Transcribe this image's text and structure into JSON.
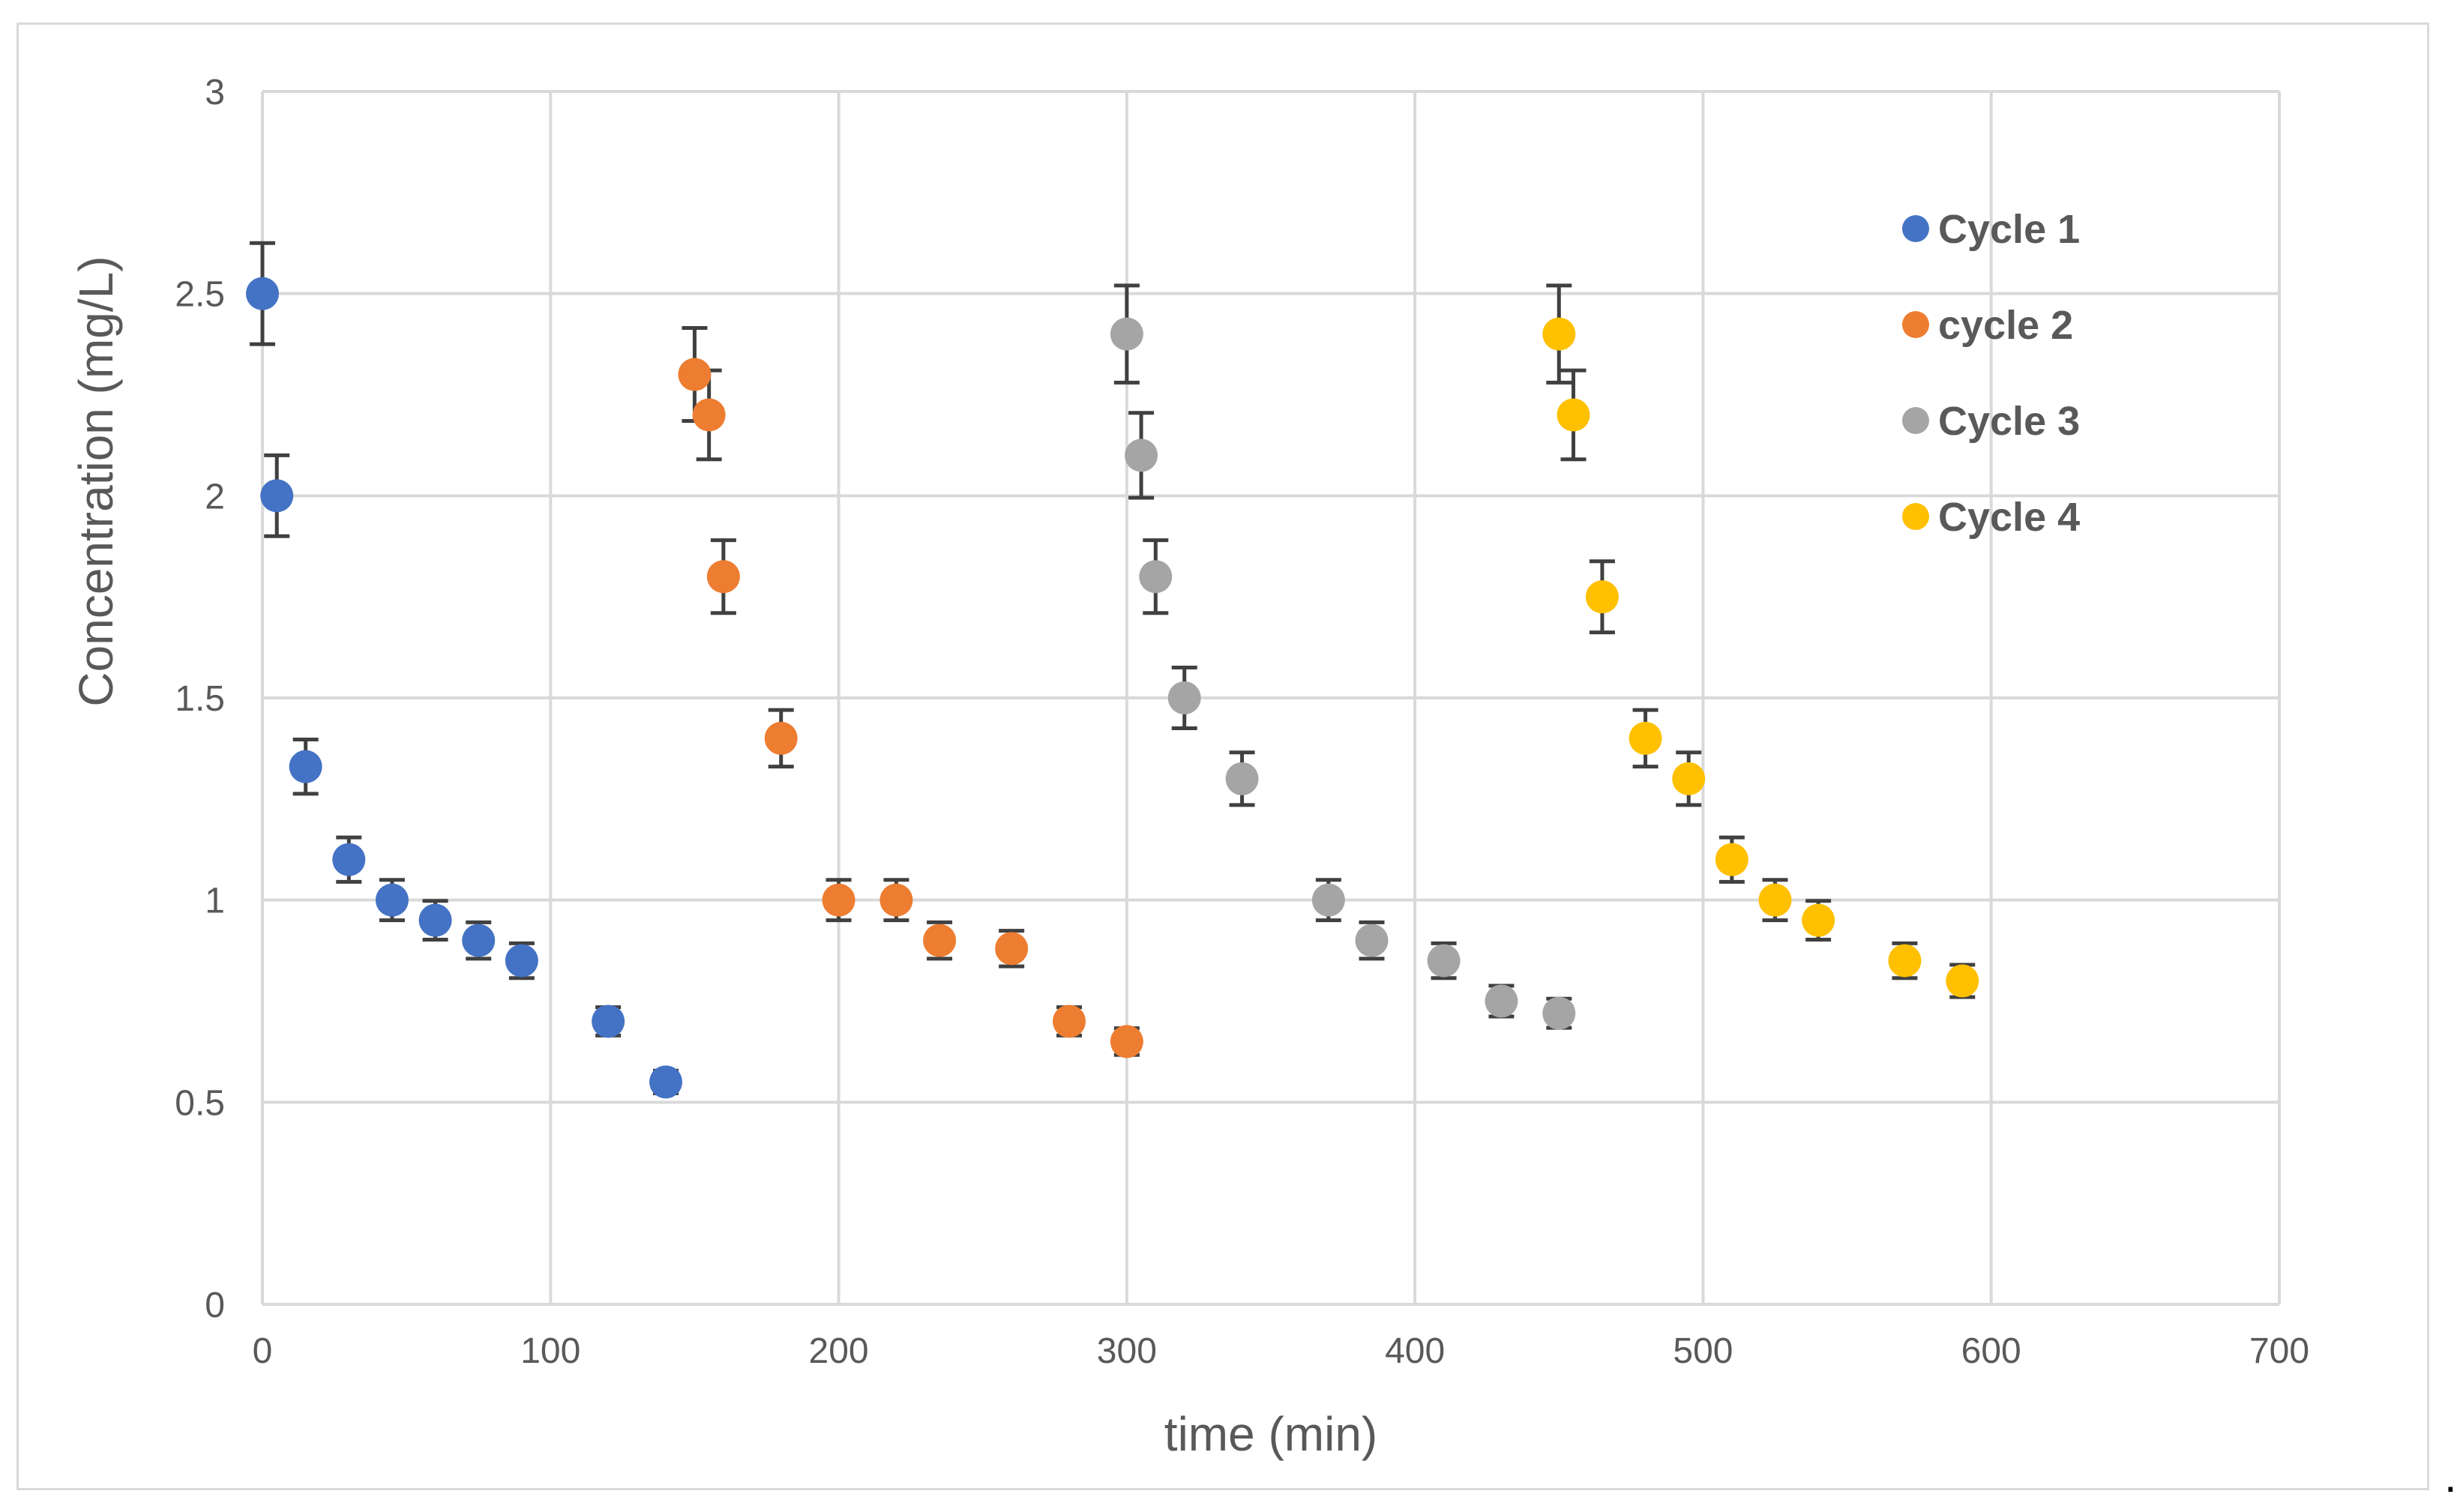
{
  "chart_data": {
    "type": "scatter",
    "title": "",
    "xlabel": "time (min)",
    "ylabel": "Concentration (mg/L)",
    "xlim": [
      0,
      700
    ],
    "ylim": [
      0,
      3
    ],
    "xticks": [
      0,
      100,
      200,
      300,
      400,
      500,
      600,
      700
    ],
    "yticks": [
      0,
      0.5,
      1,
      1.5,
      2,
      2.5,
      3
    ],
    "xtick_labels": [
      "0",
      "100",
      "200",
      "300",
      "400",
      "500",
      "600",
      "700"
    ],
    "ytick_labels": [
      "0",
      "0.5",
      "1",
      "1.5",
      "2",
      "2.5",
      "3"
    ],
    "grid": true,
    "legend_position": "right",
    "error_bar_color": "#404040",
    "series": [
      {
        "name": "Cycle 1",
        "color": "#4472C4",
        "x": [
          0,
          5,
          15,
          30,
          45,
          60,
          75,
          90,
          120,
          140
        ],
        "y": [
          2.5,
          2.0,
          1.33,
          1.1,
          1.0,
          0.95,
          0.9,
          0.85,
          0.7,
          0.55
        ],
        "err": [
          0.125,
          0.1,
          0.067,
          0.055,
          0.05,
          0.048,
          0.045,
          0.043,
          0.035,
          0.028
        ]
      },
      {
        "name": "cycle 2",
        "color": "#ED7D31",
        "x": [
          150,
          155,
          160,
          180,
          200,
          220,
          235,
          260,
          280,
          300
        ],
        "y": [
          2.3,
          2.2,
          1.8,
          1.4,
          1.0,
          1.0,
          0.9,
          0.88,
          0.7,
          0.65
        ],
        "err": [
          0.115,
          0.11,
          0.09,
          0.07,
          0.05,
          0.05,
          0.045,
          0.044,
          0.035,
          0.033
        ]
      },
      {
        "name": "Cycle 3",
        "color": "#A5A5A5",
        "x": [
          300,
          305,
          310,
          320,
          340,
          370,
          385,
          410,
          430,
          450
        ],
        "y": [
          2.4,
          2.1,
          1.8,
          1.5,
          1.3,
          1.0,
          0.9,
          0.85,
          0.75,
          0.72
        ],
        "err": [
          0.12,
          0.105,
          0.09,
          0.075,
          0.065,
          0.05,
          0.045,
          0.043,
          0.038,
          0.036
        ]
      },
      {
        "name": "Cycle 4",
        "color": "#FFC000",
        "x": [
          450,
          455,
          465,
          480,
          495,
          510,
          525,
          540,
          570,
          590
        ],
        "y": [
          2.4,
          2.2,
          1.75,
          1.4,
          1.3,
          1.1,
          1.0,
          0.95,
          0.85,
          0.8
        ],
        "err": [
          0.12,
          0.11,
          0.088,
          0.07,
          0.065,
          0.055,
          0.05,
          0.048,
          0.043,
          0.04
        ]
      }
    ]
  },
  "trailing_mark": "."
}
